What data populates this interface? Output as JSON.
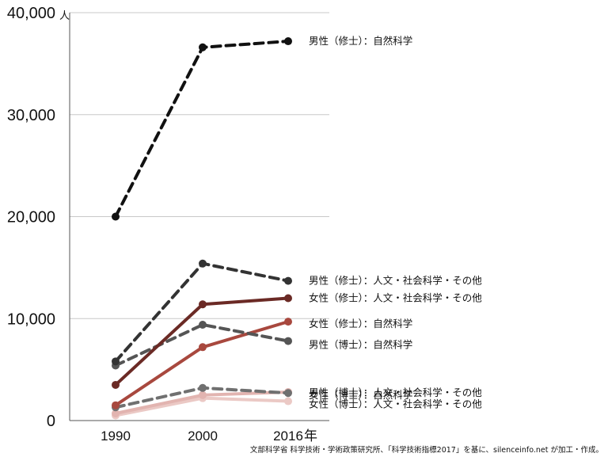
{
  "chart_data": {
    "type": "line",
    "y_unit": "人",
    "ylim": [
      0,
      40000
    ],
    "grid": true,
    "x": [
      "1990",
      "2000",
      "2016"
    ],
    "x_last_suffix": "年",
    "yticks": [
      "0",
      "10,000",
      "20,000",
      "30,000",
      "40,000"
    ],
    "ytick_values": [
      0,
      10000,
      20000,
      30000,
      40000
    ],
    "series": [
      {
        "name": "男性（修士）：自然科学",
        "values": [
          20000,
          36600,
          37200
        ],
        "color": "#111111",
        "dashed": true
      },
      {
        "name": "男性（修士）：人文・社会科学・その他",
        "values": [
          5800,
          15400,
          13700
        ],
        "color": "#333333",
        "dashed": true
      },
      {
        "name": "女性（修士）：人文・社会科学・その他",
        "values": [
          3500,
          11400,
          12000
        ],
        "color": "#6b2a25",
        "dashed": false
      },
      {
        "name": "女性（修士）：自然科学",
        "values": [
          1500,
          7200,
          9700
        ],
        "color": "#a8483e",
        "dashed": false
      },
      {
        "name": "男性（博士）：自然科学",
        "values": [
          5400,
          9400,
          7800
        ],
        "color": "#555555",
        "dashed": true
      },
      {
        "name": "女性（博士）：自然科学",
        "values": [
          700,
          2500,
          2800
        ],
        "color": "#e2b4b0",
        "dashed": false
      },
      {
        "name": "男性（博士）：人文・社会科学・その他",
        "values": [
          1300,
          3200,
          2700
        ],
        "color": "#707070",
        "dashed": true
      },
      {
        "name": "女性（博士）：人文・社会科学・その他",
        "values": [
          500,
          2200,
          1900
        ],
        "color": "#ebc9c5",
        "dashed": false
      }
    ],
    "source": "文部科学省 科学技術・学術政策研究所、「科学技術指標2017」を基に、silenceinfo.net が加工・作成。"
  }
}
